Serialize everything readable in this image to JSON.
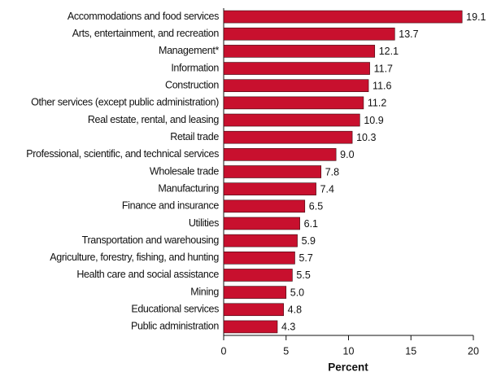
{
  "chart_data": {
    "type": "bar",
    "orientation": "horizontal",
    "x_label": "Percent",
    "categories": [
      "Accommodations and food services",
      "Arts, entertainment, and recreation",
      "Management*",
      "Information",
      "Construction",
      "Other services (except public administration)",
      "Real estate, rental, and leasing",
      "Retail trade",
      "Professional, scientific, and technical services",
      "Wholesale trade",
      "Manufacturing",
      "Finance and insurance",
      "Utilities",
      "Transportation and warehousing",
      "Agriculture, forestry, fishing, and hunting",
      "Health care and social assistance",
      "Mining",
      "Educational services",
      "Public administration"
    ],
    "values": [
      19.1,
      13.7,
      12.1,
      11.7,
      11.6,
      11.2,
      10.9,
      10.3,
      9.0,
      7.8,
      7.4,
      6.5,
      6.1,
      5.9,
      5.7,
      5.5,
      5.0,
      4.8,
      4.3
    ],
    "value_labels": [
      "19.1",
      "13.7",
      "12.1",
      "11.7",
      "11.6",
      "11.2",
      "10.9",
      "10.3",
      "9.0",
      "7.8",
      "7.4",
      "6.5",
      "6.1",
      "5.9",
      "5.7",
      "5.5",
      "5.0",
      "4.8",
      "4.3"
    ],
    "color": "#c8102e",
    "xlim": [
      0,
      20
    ],
    "xticks": [
      0,
      5,
      10,
      15,
      20
    ],
    "grid": false
  }
}
